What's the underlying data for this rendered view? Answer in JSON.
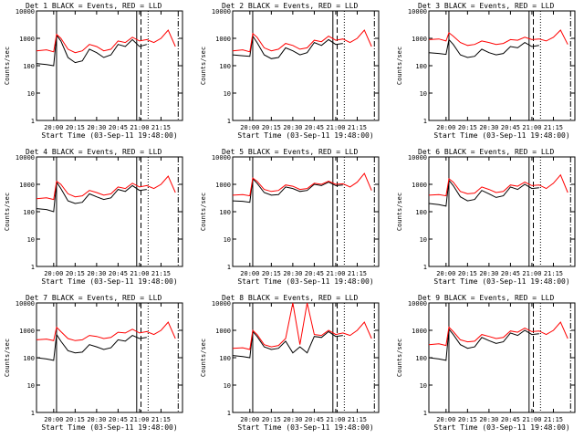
{
  "figure": {
    "time_ticks": [
      "20:00",
      "20:15",
      "20:30",
      "20:45",
      "21:00",
      "21:15"
    ],
    "y_ticks": [
      "1",
      "10",
      "100",
      "1000",
      "10000"
    ],
    "y_label": "Counts/sec",
    "x_label": "Start Time (03-Sep-11 19:48:00)"
  },
  "chart_data": [
    {
      "type": "line",
      "title": "Det 1 BLACK = Events, RED = LLD",
      "xlabel": "Start Time (03-Sep-11 19:48:00)",
      "ylabel": "Counts/sec",
      "log_y": true,
      "ylim": [
        1,
        10000
      ],
      "series": [
        {
          "color": "#000000",
          "x": [
            "19:48",
            "19:55",
            "20:00",
            "20:02",
            "20:05",
            "20:10",
            "20:15",
            "20:20",
            "20:25",
            "20:30",
            "20:35",
            "20:40",
            "20:45",
            "20:50",
            "20:55",
            "21:00",
            "21:05"
          ],
          "values": [
            120,
            110,
            100,
            1300,
            800,
            200,
            130,
            150,
            400,
            300,
            200,
            250,
            600,
            500,
            900,
            500,
            600
          ]
        },
        {
          "color": "#ff0000",
          "x": [
            "19:48",
            "19:55",
            "20:00",
            "20:02",
            "20:05",
            "20:10",
            "20:15",
            "20:20",
            "20:25",
            "20:30",
            "20:35",
            "20:40",
            "20:45",
            "20:50",
            "20:55",
            "21:00",
            "21:05",
            "21:10",
            "21:15",
            "21:20",
            "21:25"
          ],
          "values": [
            350,
            380,
            320,
            1400,
            1000,
            400,
            300,
            350,
            600,
            500,
            350,
            400,
            800,
            700,
            1100,
            800,
            900,
            700,
            1000,
            2000,
            500
          ]
        }
      ]
    },
    {
      "type": "line",
      "title": "Det 2 BLACK = Events, RED = LLD",
      "xlabel": "Start Time (03-Sep-11 19:48:00)",
      "ylabel": "Counts/sec",
      "log_y": true,
      "ylim": [
        1,
        10000
      ],
      "series": [
        {
          "color": "#000000",
          "x": [
            "19:48",
            "19:55",
            "20:00",
            "20:02",
            "20:05",
            "20:10",
            "20:15",
            "20:20",
            "20:25",
            "20:30",
            "20:35",
            "20:40",
            "20:45",
            "20:50",
            "20:55",
            "21:00",
            "21:05"
          ],
          "values": [
            250,
            230,
            220,
            1200,
            700,
            250,
            180,
            200,
            450,
            350,
            250,
            300,
            700,
            550,
            900,
            600,
            650
          ]
        },
        {
          "color": "#ff0000",
          "x": [
            "19:48",
            "19:55",
            "20:00",
            "20:02",
            "20:05",
            "20:10",
            "20:15",
            "20:20",
            "20:25",
            "20:30",
            "20:35",
            "20:40",
            "20:45",
            "20:50",
            "20:55",
            "21:00",
            "21:05",
            "21:10",
            "21:15",
            "21:20",
            "21:25"
          ],
          "values": [
            350,
            380,
            320,
            1500,
            1100,
            450,
            350,
            400,
            650,
            550,
            400,
            450,
            850,
            750,
            1200,
            850,
            950,
            700,
            1000,
            2000,
            500
          ]
        }
      ]
    },
    {
      "type": "line",
      "title": "Det 3 BLACK = Events, RED = LLD",
      "xlabel": "Start Time (03-Sep-11 19:48:00)",
      "ylabel": "Counts/sec",
      "log_y": true,
      "ylim": [
        1,
        10000
      ],
      "series": [
        {
          "color": "#000000",
          "x": [
            "19:48",
            "19:55",
            "20:00",
            "20:02",
            "20:05",
            "20:10",
            "20:15",
            "20:20",
            "20:25",
            "20:30",
            "20:35",
            "20:40",
            "20:45",
            "20:50",
            "20:55",
            "21:00",
            "21:05"
          ],
          "values": [
            300,
            280,
            260,
            900,
            600,
            250,
            200,
            220,
            400,
            300,
            250,
            280,
            500,
            450,
            700,
            500,
            550
          ]
        },
        {
          "color": "#ff0000",
          "x": [
            "19:48",
            "19:55",
            "20:00",
            "20:02",
            "20:05",
            "20:10",
            "20:15",
            "20:20",
            "20:25",
            "20:30",
            "20:35",
            "20:40",
            "20:45",
            "20:50",
            "20:55",
            "21:00",
            "21:05",
            "21:10",
            "21:15",
            "21:20",
            "21:25"
          ],
          "values": [
            900,
            950,
            800,
            1600,
            1200,
            700,
            550,
            600,
            800,
            700,
            600,
            650,
            900,
            850,
            1100,
            900,
            950,
            800,
            1100,
            2000,
            600
          ]
        }
      ]
    },
    {
      "type": "line",
      "title": "Det 4 BLACK = Events, RED = LLD",
      "xlabel": "Start Time (03-Sep-11 19:48:00)",
      "ylabel": "Counts/sec",
      "log_y": true,
      "ylim": [
        1,
        10000
      ],
      "series": [
        {
          "color": "#000000",
          "x": [
            "19:48",
            "19:55",
            "20:00",
            "20:02",
            "20:05",
            "20:10",
            "20:15",
            "20:20",
            "20:25",
            "20:30",
            "20:35",
            "20:40",
            "20:45",
            "20:50",
            "20:55",
            "21:00",
            "21:05"
          ],
          "values": [
            130,
            120,
            100,
            1200,
            700,
            250,
            200,
            220,
            450,
            350,
            280,
            320,
            650,
            550,
            900,
            600,
            650
          ]
        },
        {
          "color": "#ff0000",
          "x": [
            "19:48",
            "19:55",
            "20:00",
            "20:02",
            "20:05",
            "20:10",
            "20:15",
            "20:20",
            "20:25",
            "20:30",
            "20:35",
            "20:40",
            "20:45",
            "20:50",
            "20:55",
            "21:00",
            "21:05",
            "21:10",
            "21:15",
            "21:20",
            "21:25"
          ],
          "values": [
            300,
            320,
            280,
            1300,
            1000,
            450,
            350,
            380,
            600,
            500,
            400,
            450,
            800,
            700,
            1100,
            800,
            900,
            700,
            1000,
            2000,
            500
          ]
        }
      ]
    },
    {
      "type": "line",
      "title": "Det 5 BLACK = Events, RED = LLD",
      "xlabel": "Start Time (03-Sep-11 19:48:00)",
      "ylabel": "Counts/sec",
      "log_y": true,
      "ylim": [
        1,
        10000
      ],
      "series": [
        {
          "color": "#000000",
          "x": [
            "19:48",
            "19:55",
            "20:00",
            "20:02",
            "20:05",
            "20:10",
            "20:15",
            "20:20",
            "20:25",
            "20:30",
            "20:35",
            "20:40",
            "20:45",
            "20:50",
            "20:55",
            "21:00",
            "21:05"
          ],
          "values": [
            250,
            240,
            220,
            1600,
            1100,
            500,
            400,
            420,
            800,
            700,
            550,
            600,
            1000,
            900,
            1200,
            900,
            950
          ]
        },
        {
          "color": "#ff0000",
          "x": [
            "19:48",
            "19:55",
            "20:00",
            "20:02",
            "20:05",
            "20:10",
            "20:15",
            "20:20",
            "20:25",
            "20:30",
            "20:35",
            "20:40",
            "20:45",
            "20:50",
            "20:55",
            "21:00",
            "21:05",
            "21:10",
            "21:15",
            "21:20",
            "21:25"
          ],
          "values": [
            400,
            420,
            380,
            1700,
            1300,
            650,
            550,
            600,
            950,
            850,
            650,
            700,
            1100,
            1000,
            1300,
            1000,
            1050,
            800,
            1200,
            2500,
            600
          ]
        }
      ]
    },
    {
      "type": "line",
      "title": "Det 6 BLACK = Events, RED = LLD",
      "xlabel": "Start Time (03-Sep-11 19:48:00)",
      "ylabel": "Counts/sec",
      "log_y": true,
      "ylim": [
        1,
        10000
      ],
      "series": [
        {
          "color": "#000000",
          "x": [
            "19:48",
            "19:55",
            "20:00",
            "20:02",
            "20:05",
            "20:10",
            "20:15",
            "20:20",
            "20:25",
            "20:30",
            "20:35",
            "20:40",
            "20:45",
            "20:50",
            "20:55",
            "21:00",
            "21:05"
          ],
          "values": [
            200,
            180,
            160,
            1400,
            900,
            350,
            250,
            280,
            600,
            450,
            330,
            380,
            800,
            650,
            1000,
            700,
            750
          ]
        },
        {
          "color": "#ff0000",
          "x": [
            "19:48",
            "19:55",
            "20:00",
            "20:02",
            "20:05",
            "20:10",
            "20:15",
            "20:20",
            "20:25",
            "20:30",
            "20:35",
            "20:40",
            "20:45",
            "20:50",
            "20:55",
            "21:00",
            "21:05",
            "21:10",
            "21:15",
            "21:20",
            "21:25"
          ],
          "values": [
            400,
            420,
            380,
            1600,
            1200,
            550,
            450,
            480,
            800,
            650,
            500,
            550,
            950,
            850,
            1200,
            900,
            950,
            700,
            1100,
            2200,
            500
          ]
        }
      ]
    },
    {
      "type": "line",
      "title": "Det 7 BLACK = Events, RED = LLD",
      "xlabel": "Start Time (03-Sep-11 19:48:00)",
      "ylabel": "Counts/sec",
      "log_y": true,
      "ylim": [
        1,
        10000
      ],
      "series": [
        {
          "color": "#000000",
          "x": [
            "19:48",
            "19:55",
            "20:00",
            "20:02",
            "20:05",
            "20:10",
            "20:15",
            "20:20",
            "20:25",
            "20:30",
            "20:35",
            "20:40",
            "20:45",
            "20:50",
            "20:55",
            "21:00",
            "21:05"
          ],
          "values": [
            100,
            90,
            80,
            700,
            400,
            180,
            150,
            160,
            300,
            250,
            200,
            230,
            450,
            400,
            650,
            500,
            550
          ]
        },
        {
          "color": "#ff0000",
          "x": [
            "19:48",
            "19:55",
            "20:00",
            "20:02",
            "20:05",
            "20:10",
            "20:15",
            "20:20",
            "20:25",
            "20:30",
            "20:35",
            "20:40",
            "20:45",
            "20:50",
            "20:55",
            "21:00",
            "21:05",
            "21:10",
            "21:15",
            "21:20",
            "21:25"
          ],
          "values": [
            450,
            480,
            420,
            1300,
            900,
            500,
            420,
            450,
            650,
            600,
            500,
            550,
            850,
            800,
            1100,
            800,
            900,
            700,
            1000,
            2000,
            500
          ]
        }
      ]
    },
    {
      "type": "line",
      "title": "Det 8 BLACK = Events, RED = LLD",
      "xlabel": "Start Time (03-Sep-11 19:48:00)",
      "ylabel": "Counts/sec",
      "log_y": true,
      "ylim": [
        1,
        10000
      ],
      "series": [
        {
          "color": "#000000",
          "x": [
            "19:48",
            "19:55",
            "20:00",
            "20:02",
            "20:05",
            "20:10",
            "20:15",
            "20:20",
            "20:25",
            "20:30",
            "20:35",
            "20:40",
            "20:45",
            "20:50",
            "20:55",
            "21:00",
            "21:05"
          ],
          "values": [
            120,
            110,
            100,
            900,
            600,
            250,
            200,
            220,
            400,
            150,
            250,
            150,
            600,
            550,
            900,
            600,
            650
          ]
        },
        {
          "color": "#ff0000",
          "x": [
            "19:48",
            "19:55",
            "20:00",
            "20:02",
            "20:05",
            "20:10",
            "20:15",
            "20:20",
            "20:25",
            "20:30",
            "20:35",
            "20:40",
            "20:45",
            "20:50",
            "20:55",
            "21:00",
            "21:05",
            "21:10",
            "21:15",
            "21:20",
            "21:25"
          ],
          "values": [
            220,
            230,
            200,
            1000,
            700,
            300,
            250,
            280,
            500,
            10000,
            300,
            10000,
            700,
            650,
            1000,
            700,
            800,
            650,
            1000,
            2000,
            500
          ]
        }
      ]
    },
    {
      "type": "line",
      "title": "Det 9 BLACK = Events, RED = LLD",
      "xlabel": "Start Time (03-Sep-11 19:48:00)",
      "ylabel": "Counts/sec",
      "log_y": true,
      "ylim": [
        1,
        10000
      ],
      "series": [
        {
          "color": "#000000",
          "x": [
            "19:48",
            "19:55",
            "20:00",
            "20:02",
            "20:05",
            "20:10",
            "20:15",
            "20:20",
            "20:25",
            "20:30",
            "20:35",
            "20:40",
            "20:45",
            "20:50",
            "20:55",
            "21:00",
            "21:05"
          ],
          "values": [
            100,
            90,
            80,
            1100,
            700,
            300,
            220,
            250,
            550,
            420,
            330,
            380,
            800,
            650,
            1000,
            700,
            750
          ]
        },
        {
          "color": "#ff0000",
          "x": [
            "19:48",
            "19:55",
            "20:00",
            "20:02",
            "20:05",
            "20:10",
            "20:15",
            "20:20",
            "20:25",
            "20:30",
            "20:35",
            "20:40",
            "20:45",
            "20:50",
            "20:55",
            "21:00",
            "21:05",
            "21:10",
            "21:15",
            "21:20",
            "21:25"
          ],
          "values": [
            300,
            320,
            280,
            1300,
            900,
            450,
            380,
            400,
            700,
            600,
            500,
            550,
            950,
            850,
            1200,
            900,
            950,
            700,
            1000,
            2000,
            500
          ]
        }
      ]
    }
  ]
}
